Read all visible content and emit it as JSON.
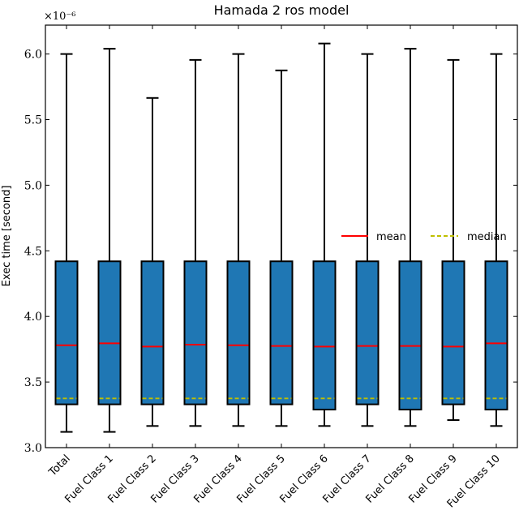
{
  "chart_data": {
    "type": "box",
    "title": "Hamada 2 ros model",
    "ylabel": "Exec time [second]",
    "xlabel": "",
    "y_scale_label": "×10⁻⁶",
    "ylim": [
      3.0,
      6.22
    ],
    "yticks": [
      3.0,
      3.5,
      4.0,
      4.5,
      5.0,
      5.5,
      6.0
    ],
    "ytick_labels": [
      "3.0",
      "3.5",
      "4.0",
      "4.5",
      "5.0",
      "5.5",
      "6.0"
    ],
    "grid": false,
    "legend_position": "center-right",
    "legend": [
      {
        "label": "mean",
        "color": "#ff0000",
        "style": "solid"
      },
      {
        "label": "median",
        "color": "#bfbf00",
        "style": "dashed"
      }
    ],
    "colors": {
      "box_fill": "#1f77b4",
      "edge": "#000000",
      "mean": "#ff0000",
      "median": "#bfbf00"
    },
    "categories": [
      "Total",
      "Fuel Class 1",
      "Fuel Class 2",
      "Fuel Class 3",
      "Fuel Class 4",
      "Fuel Class 5",
      "Fuel Class 6",
      "Fuel Class 7",
      "Fuel Class 8",
      "Fuel Class 9",
      "Fuel Class 10"
    ],
    "boxes": [
      {
        "whisker_low": 3.12,
        "q1": 3.33,
        "median": 3.375,
        "mean": 3.78,
        "q3": 4.42,
        "whisker_high": 6.0
      },
      {
        "whisker_low": 3.12,
        "q1": 3.33,
        "median": 3.375,
        "mean": 3.795,
        "q3": 4.42,
        "whisker_high": 6.04
      },
      {
        "whisker_low": 3.165,
        "q1": 3.33,
        "median": 3.375,
        "mean": 3.77,
        "q3": 4.42,
        "whisker_high": 5.665
      },
      {
        "whisker_low": 3.165,
        "q1": 3.33,
        "median": 3.375,
        "mean": 3.785,
        "q3": 4.42,
        "whisker_high": 5.955
      },
      {
        "whisker_low": 3.165,
        "q1": 3.33,
        "median": 3.375,
        "mean": 3.78,
        "q3": 4.42,
        "whisker_high": 6.0
      },
      {
        "whisker_low": 3.165,
        "q1": 3.33,
        "median": 3.375,
        "mean": 3.775,
        "q3": 4.42,
        "whisker_high": 5.875
      },
      {
        "whisker_low": 3.165,
        "q1": 3.29,
        "median": 3.375,
        "mean": 3.77,
        "q3": 4.42,
        "whisker_high": 6.08
      },
      {
        "whisker_low": 3.165,
        "q1": 3.33,
        "median": 3.375,
        "mean": 3.775,
        "q3": 4.42,
        "whisker_high": 6.0
      },
      {
        "whisker_low": 3.165,
        "q1": 3.29,
        "median": 3.375,
        "mean": 3.775,
        "q3": 4.42,
        "whisker_high": 6.04
      },
      {
        "whisker_low": 3.21,
        "q1": 3.33,
        "median": 3.375,
        "mean": 3.77,
        "q3": 4.42,
        "whisker_high": 5.955
      },
      {
        "whisker_low": 3.165,
        "q1": 3.29,
        "median": 3.375,
        "mean": 3.795,
        "q3": 4.42,
        "whisker_high": 6.0
      }
    ]
  }
}
